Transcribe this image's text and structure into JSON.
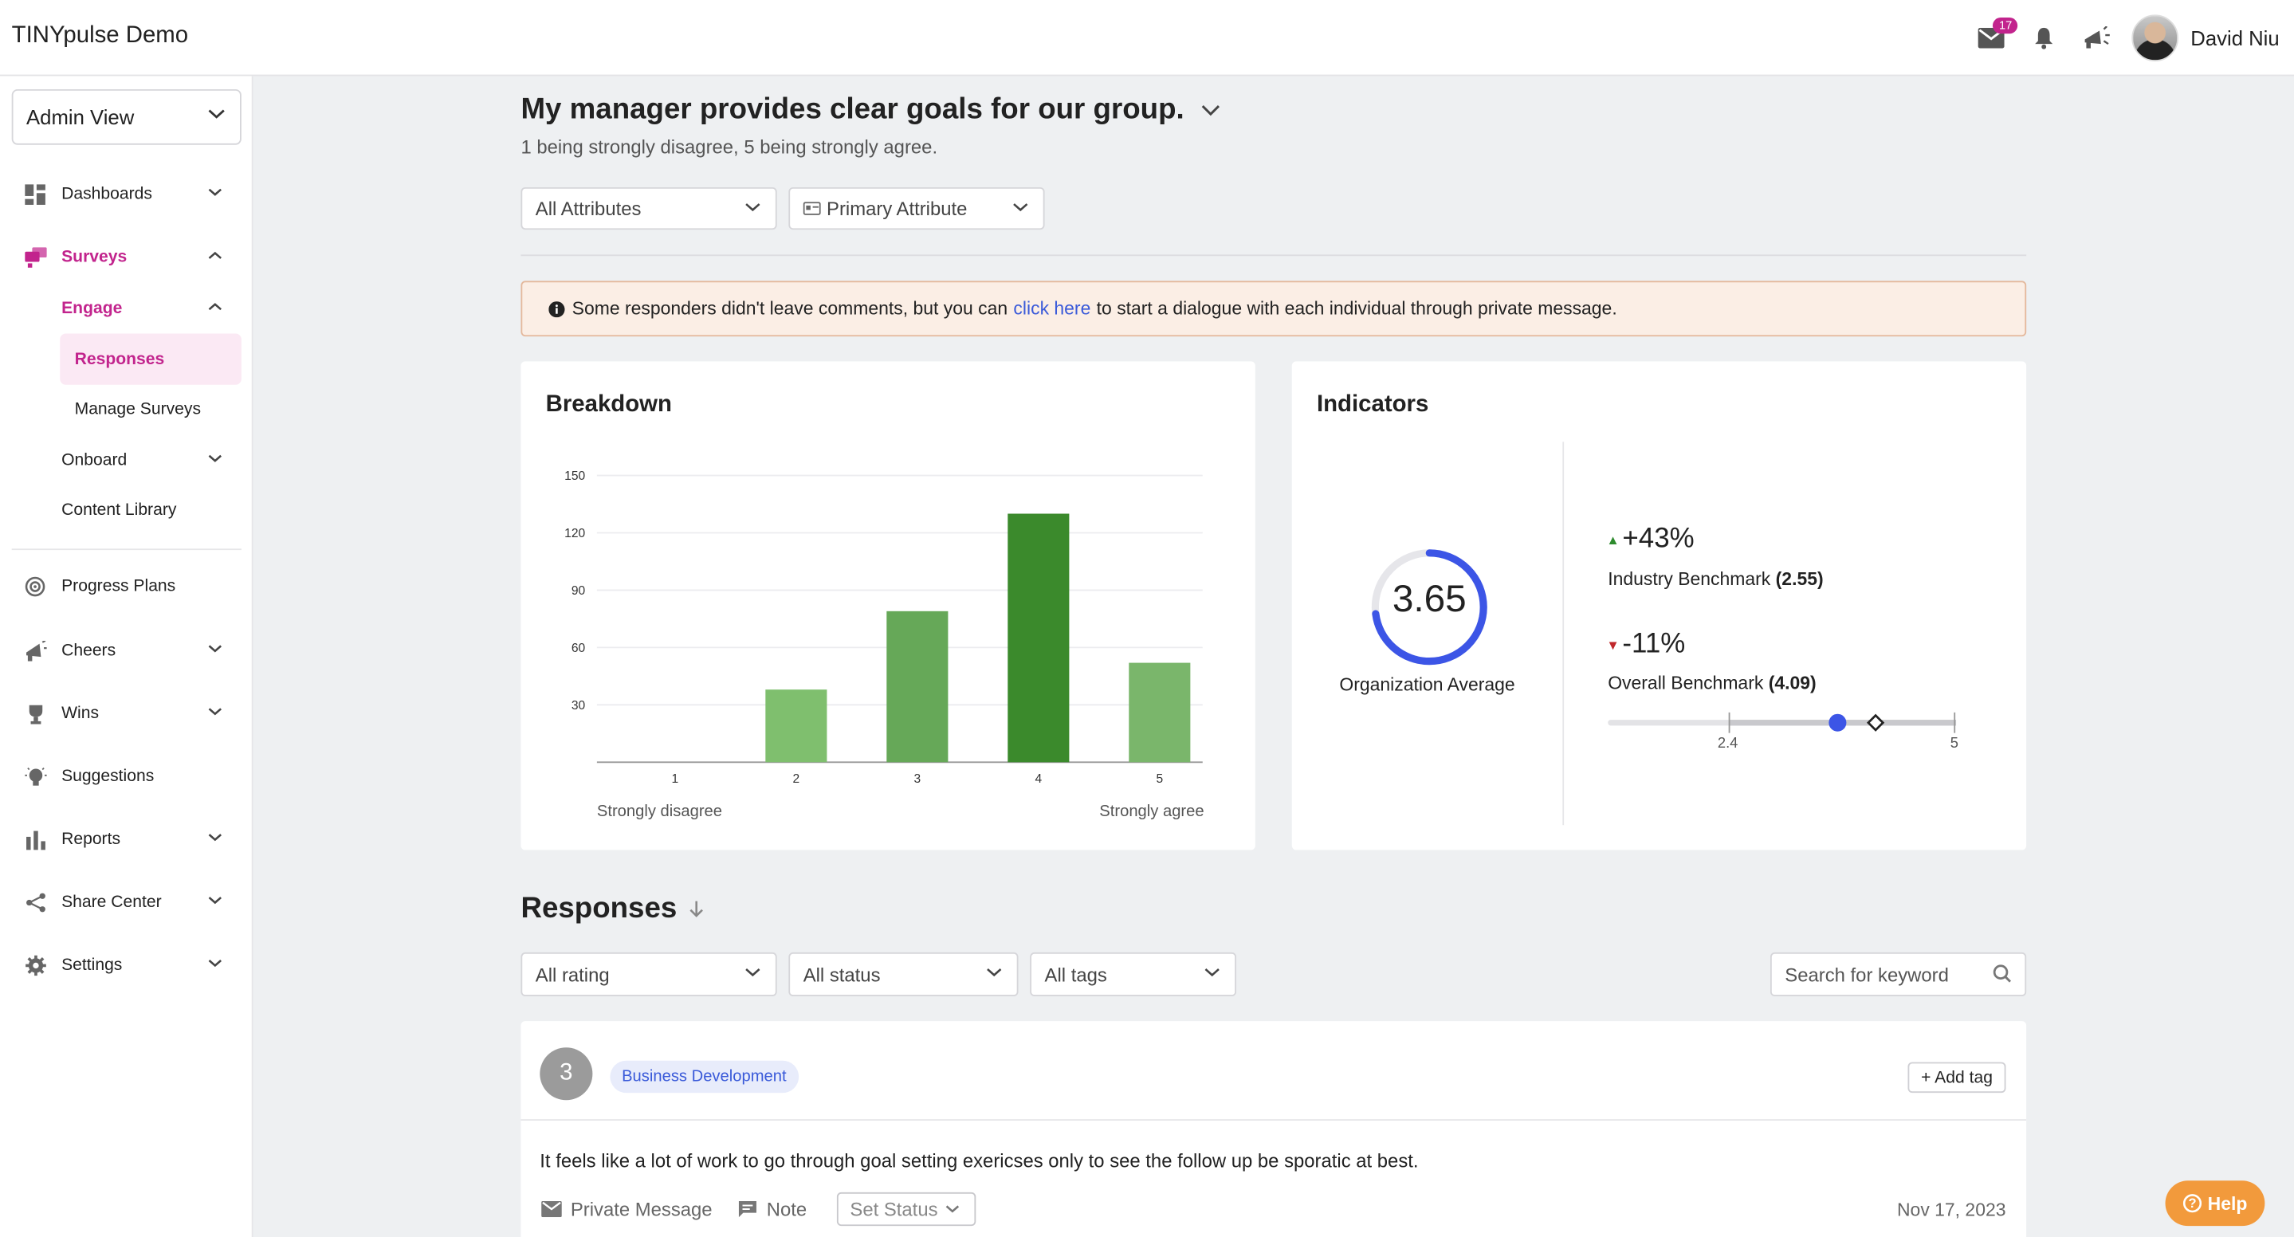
{
  "app": {
    "title": "TINYpulse Demo"
  },
  "topbar": {
    "mail_badge": "17",
    "user_name": "David Niu"
  },
  "sidebar": {
    "view": "Admin View",
    "items": [
      {
        "label": "Dashboards"
      },
      {
        "label": "Surveys"
      },
      {
        "label": "Engage"
      },
      {
        "label": "Responses"
      },
      {
        "label": "Manage Surveys"
      },
      {
        "label": "Onboard"
      },
      {
        "label": "Content Library"
      },
      {
        "label": "Progress Plans"
      },
      {
        "label": "Cheers"
      },
      {
        "label": "Wins"
      },
      {
        "label": "Suggestions"
      },
      {
        "label": "Reports"
      },
      {
        "label": "Share Center"
      },
      {
        "label": "Settings"
      }
    ]
  },
  "question": {
    "title": "My manager provides clear goals for our group.",
    "subtitle": "1 being strongly disagree, 5 being strongly agree."
  },
  "filters": {
    "attributes": "All Attributes",
    "primary": "Primary Attribute"
  },
  "alert": {
    "before": "Some responders didn't leave comments, but you can",
    "link": "click here",
    "after": "to start a dialogue with each individual through private message."
  },
  "breakdown": {
    "title": "Breakdown",
    "left_note": "Strongly disagree",
    "right_note": "Strongly agree"
  },
  "chart_data": {
    "type": "bar",
    "categories": [
      "1",
      "2",
      "3",
      "4",
      "5"
    ],
    "values": [
      0,
      38,
      79,
      130,
      52
    ],
    "yticks": [
      "30",
      "60",
      "90",
      "120",
      "150"
    ],
    "ylim": [
      0,
      150
    ],
    "colors": [
      "#7fbf6e",
      "#7fbf6e",
      "#66a858",
      "#3b8a2c",
      "#7ab66b"
    ]
  },
  "indicators": {
    "title": "Indicators",
    "org_avg": "3.65",
    "org_label": "Organization Average",
    "org_fraction": 0.73,
    "industry_pct": "+43%",
    "industry_label": "Industry Benchmark",
    "industry_value": "(2.55)",
    "overall_pct": "-11%",
    "overall_label": "Overall Benchmark",
    "overall_value": "(4.09)",
    "slider_min": "2.4",
    "slider_max": "5",
    "up_color": "#2e8b2e",
    "down_color": "#c0282b",
    "accent": "#3c55e6"
  },
  "responses": {
    "title": "Responses",
    "rating_filter": "All rating",
    "status_filter": "All status",
    "tags_filter": "All tags",
    "search_placeholder": "Search for keyword",
    "item": {
      "rating": "3",
      "tag": "Business Development",
      "add_tag": "+ Add tag",
      "text": "It feels like a lot of work to go through goal setting exericses only to see the follow up be sporatic at best.",
      "private_message": "Private Message",
      "note": "Note",
      "set_status": "Set Status",
      "date": "Nov 17, 2023"
    }
  },
  "help": {
    "label": "Help"
  }
}
